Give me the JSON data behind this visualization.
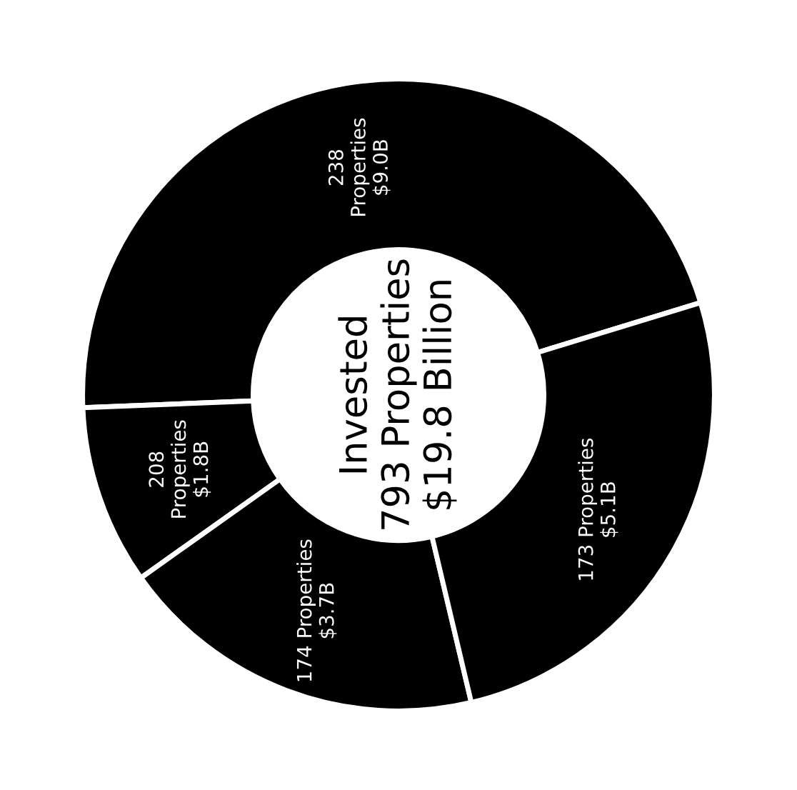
{
  "chart_data": {
    "type": "donut",
    "categories": [
      "238\nProperties",
      "208\nProperties",
      "174 Properties",
      "173 Properties"
    ],
    "values": [
      9.0,
      1.8,
      3.7,
      5.1
    ],
    "value_labels": [
      "$9.0B",
      "$1.8B",
      "$3.7B",
      "$5.1B"
    ],
    "colors": [
      "#000000",
      "#000000",
      "#000000",
      "#000000"
    ],
    "annotations": [
      "Invested\n793 Properties\n$19.8 Billion"
    ]
  }
}
